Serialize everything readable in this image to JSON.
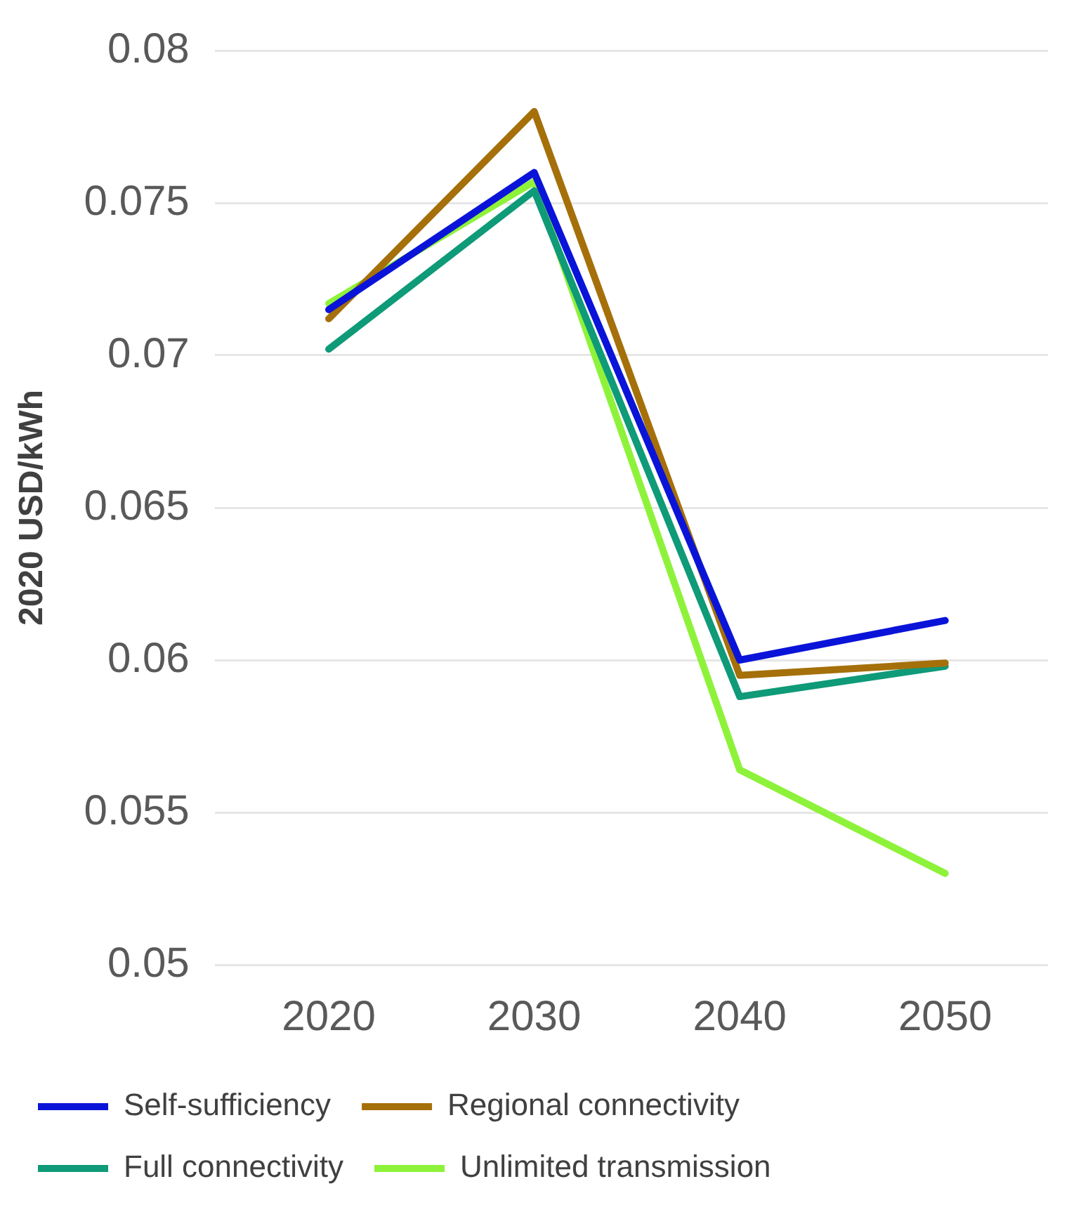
{
  "chart_data": {
    "type": "line",
    "ylabel": "2020 USD/kWh",
    "categories": [
      "2020",
      "2030",
      "2040",
      "2050"
    ],
    "series": [
      {
        "name": "Self-sufficiency",
        "color": "#0a14d8",
        "values": [
          0.0715,
          0.076,
          0.06,
          0.0613
        ]
      },
      {
        "name": "Regional connectivity",
        "color": "#a5700a",
        "values": [
          0.0712,
          0.078,
          0.0595,
          0.0599
        ]
      },
      {
        "name": "Full connectivity",
        "color": "#0f9a78",
        "values": [
          0.0702,
          0.0754,
          0.0588,
          0.0598
        ]
      },
      {
        "name": "Unlimited transmission",
        "color": "#8ef23a",
        "values": [
          0.0717,
          0.0757,
          0.0564,
          0.053
        ]
      }
    ],
    "ylim": [
      0.05,
      0.08
    ],
    "yticks": [
      0.05,
      0.055,
      0.06,
      0.065,
      0.07,
      0.075,
      0.08
    ],
    "grid": "y",
    "legend": "bottom",
    "marker": "none",
    "line_style": "solid"
  }
}
